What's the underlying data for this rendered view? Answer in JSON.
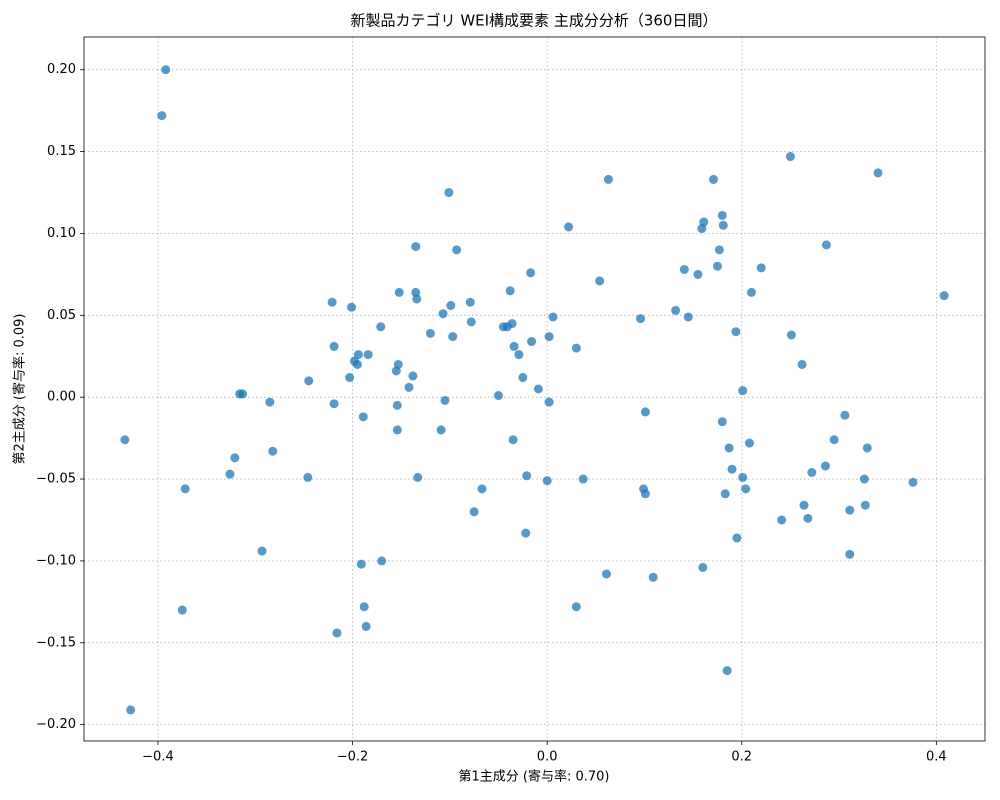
{
  "chart_data": {
    "type": "scatter",
    "title": "新製品カテゴリ WEI構成要素 主成分分析（360日間）",
    "x_label": "第1主成分 (寄与率: 0.70)",
    "y_label": "第2主成分 (寄与率: 0.09)",
    "color": "#1f77b4",
    "grid": true,
    "xlim": [
      -0.476,
      0.45
    ],
    "ylim": [
      -0.21,
      0.22
    ],
    "xticks": [
      {
        "value": -0.4,
        "label": "−0.4"
      },
      {
        "value": -0.2,
        "label": "−0.2"
      },
      {
        "value": 0,
        "label": "0.0"
      },
      {
        "value": 0.2,
        "label": "0.2"
      },
      {
        "value": 0.4,
        "label": "0.4"
      }
    ],
    "yticks": [
      {
        "value": -0.2,
        "label": "−0.20"
      },
      {
        "value": -0.15,
        "label": "−0.15"
      },
      {
        "value": -0.1,
        "label": "−0.10"
      },
      {
        "value": -0.05,
        "label": "−0.05"
      },
      {
        "value": 0,
        "label": "0.00"
      },
      {
        "value": 0.05,
        "label": "0.05"
      },
      {
        "value": 0.1,
        "label": "0.10"
      },
      {
        "value": 0.15,
        "label": "0.15"
      },
      {
        "value": 0.2,
        "label": "0.20"
      }
    ],
    "x": [
      -0.392,
      -0.396,
      -0.434,
      -0.428,
      -0.372,
      -0.375,
      -0.321,
      -0.326,
      -0.316,
      -0.313,
      -0.285,
      -0.282,
      -0.293,
      -0.245,
      -0.246,
      -0.221,
      -0.219,
      -0.219,
      -0.216,
      -0.201,
      -0.203,
      -0.198,
      -0.194,
      -0.195,
      -0.184,
      -0.189,
      -0.191,
      -0.188,
      -0.186,
      -0.171,
      -0.17,
      -0.152,
      -0.153,
      -0.155,
      -0.154,
      -0.154,
      -0.135,
      -0.135,
      -0.134,
      -0.138,
      -0.142,
      -0.133,
      -0.12,
      -0.107,
      -0.105,
      -0.109,
      -0.101,
      -0.093,
      -0.099,
      -0.097,
      -0.079,
      -0.078,
      -0.075,
      -0.067,
      -0.05,
      -0.045,
      -0.041,
      -0.038,
      -0.036,
      -0.034,
      -0.029,
      -0.035,
      -0.025,
      -0.017,
      -0.016,
      -0.021,
      -0.022,
      -0.009,
      0.002,
      0.002,
      0.006,
      0.0,
      0.022,
      0.03,
      0.03,
      0.037,
      0.054,
      0.063,
      0.061,
      0.096,
      0.101,
      0.099,
      0.101,
      0.109,
      0.132,
      0.141,
      0.145,
      0.155,
      0.159,
      0.161,
      0.16,
      0.171,
      0.175,
      0.177,
      0.18,
      0.181,
      0.18,
      0.187,
      0.183,
      0.185,
      0.19,
      0.195,
      0.194,
      0.201,
      0.201,
      0.204,
      0.208,
      0.21,
      0.22,
      0.241,
      0.25,
      0.251,
      0.262,
      0.264,
      0.268,
      0.272,
      0.286,
      0.287,
      0.295,
      0.306,
      0.311,
      0.311,
      0.326,
      0.327,
      0.329,
      0.34,
      0.376,
      0.408
    ],
    "values": [
      0.2,
      0.172,
      -0.026,
      -0.191,
      -0.056,
      -0.13,
      -0.037,
      -0.047,
      0.002,
      0.002,
      -0.003,
      -0.033,
      -0.094,
      0.01,
      -0.049,
      0.058,
      0.031,
      -0.004,
      -0.144,
      0.055,
      0.012,
      0.022,
      0.026,
      0.02,
      0.026,
      -0.012,
      -0.102,
      -0.128,
      -0.14,
      0.043,
      -0.1,
      0.064,
      0.02,
      0.016,
      -0.005,
      -0.02,
      0.092,
      0.064,
      0.06,
      0.013,
      0.006,
      -0.049,
      0.039,
      0.051,
      -0.002,
      -0.02,
      0.125,
      0.09,
      0.056,
      0.037,
      0.058,
      0.046,
      -0.07,
      -0.056,
      0.001,
      0.043,
      0.043,
      0.065,
      0.045,
      0.031,
      0.026,
      -0.026,
      0.012,
      0.076,
      0.034,
      -0.048,
      -0.083,
      0.005,
      -0.003,
      0.037,
      0.049,
      -0.051,
      0.104,
      0.03,
      -0.128,
      -0.05,
      0.071,
      0.133,
      -0.108,
      0.048,
      -0.009,
      -0.056,
      -0.059,
      -0.11,
      0.053,
      0.078,
      0.049,
      0.075,
      0.103,
      0.107,
      -0.104,
      0.133,
      0.08,
      0.09,
      0.111,
      0.105,
      -0.015,
      -0.031,
      -0.059,
      -0.167,
      -0.044,
      -0.086,
      0.04,
      0.004,
      -0.049,
      -0.056,
      -0.028,
      0.064,
      0.079,
      -0.075,
      0.147,
      0.038,
      0.02,
      -0.066,
      -0.074,
      -0.046,
      -0.042,
      0.093,
      -0.026,
      -0.011,
      -0.069,
      -0.096,
      -0.05,
      -0.066,
      -0.031,
      0.137,
      -0.052,
      0.062
    ]
  }
}
